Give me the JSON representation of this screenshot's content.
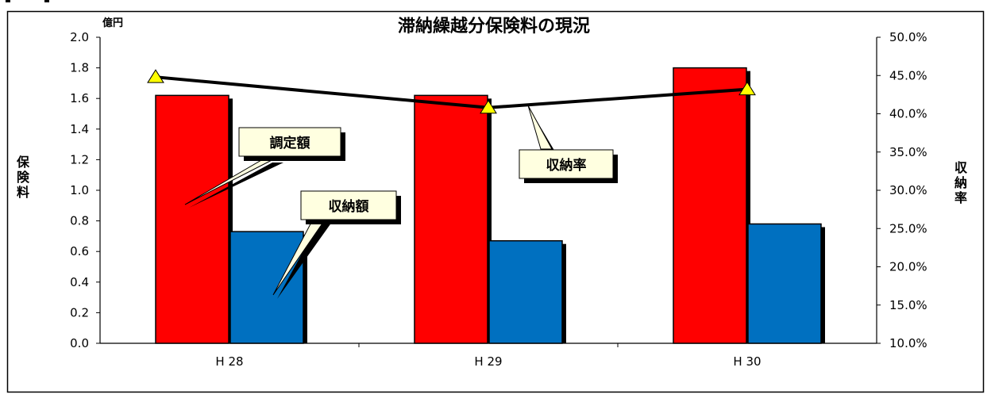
{
  "chart_data": {
    "type": "bar",
    "title": "滞納繰越分保険料の現況",
    "categories": [
      "H 28",
      "H 29",
      "H 30"
    ],
    "y_left": {
      "unit": "億円",
      "label": "保険料",
      "ylim": [
        0.0,
        2.0
      ],
      "ticks": [
        "0.0",
        "0.2",
        "0.4",
        "0.6",
        "0.8",
        "1.0",
        "1.2",
        "1.4",
        "1.6",
        "1.8",
        "2.0"
      ]
    },
    "y_right": {
      "label": "収納率",
      "ylim": [
        10.0,
        50.0
      ],
      "ticks": [
        "10.0%",
        "15.0%",
        "20.0%",
        "25.0%",
        "30.0%",
        "35.0%",
        "40.0%",
        "45.0%",
        "50.0%"
      ]
    },
    "series": [
      {
        "name": "調定額",
        "type": "bar",
        "axis": "left",
        "color": "#ff0000",
        "values": [
          1.62,
          1.62,
          1.8
        ]
      },
      {
        "name": "収納額",
        "type": "bar",
        "axis": "left",
        "color": "#0070c0",
        "values": [
          0.73,
          0.67,
          0.78
        ]
      },
      {
        "name": "収納率",
        "type": "line",
        "axis": "right",
        "marker": "triangle",
        "marker_color": "#ffff00",
        "values": [
          44.8,
          40.8,
          43.2
        ]
      }
    ],
    "grid": false,
    "legend": "callouts"
  }
}
